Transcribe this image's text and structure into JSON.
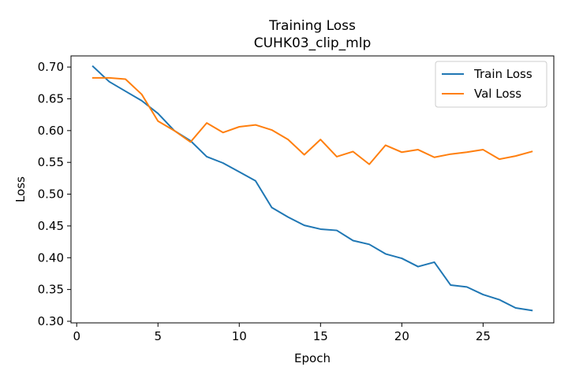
{
  "chart_data": {
    "type": "line",
    "title": "Training Loss",
    "subtitle": "CUHK03_clip_mlp",
    "xlabel": "Epoch",
    "ylabel": "Loss",
    "xlim": [
      -0.35,
      29.35
    ],
    "ylim": [
      0.2975,
      0.7175
    ],
    "x_ticks": [
      0,
      5,
      10,
      15,
      20,
      25
    ],
    "x_tick_labels": [
      "0",
      "5",
      "10",
      "15",
      "20",
      "25"
    ],
    "y_ticks": [
      0.3,
      0.35,
      0.4,
      0.45,
      0.5,
      0.55,
      0.6,
      0.65,
      0.7
    ],
    "y_tick_labels": [
      "0.30",
      "0.35",
      "0.40",
      "0.45",
      "0.50",
      "0.55",
      "0.60",
      "0.65",
      "0.70"
    ],
    "grid": false,
    "legend_position": "top-right",
    "x": [
      1,
      2,
      3,
      4,
      5,
      6,
      7,
      8,
      9,
      10,
      11,
      12,
      13,
      14,
      15,
      16,
      17,
      18,
      19,
      20,
      21,
      22,
      23,
      24,
      25,
      26,
      27,
      28
    ],
    "series": [
      {
        "name": "Train Loss",
        "color": "#1f77b4",
        "values": [
          0.701,
          0.677,
          0.662,
          0.647,
          0.627,
          0.6,
          0.584,
          0.559,
          0.549,
          0.535,
          0.521,
          0.479,
          0.464,
          0.451,
          0.445,
          0.443,
          0.427,
          0.421,
          0.406,
          0.399,
          0.386,
          0.393,
          0.357,
          0.354,
          0.342,
          0.334,
          0.321,
          0.317
        ]
      },
      {
        "name": "Val Loss",
        "color": "#ff7f0e",
        "values": [
          0.683,
          0.683,
          0.681,
          0.657,
          0.615,
          0.6,
          0.582,
          0.612,
          0.597,
          0.606,
          0.609,
          0.601,
          0.586,
          0.562,
          0.586,
          0.559,
          0.567,
          0.547,
          0.577,
          0.566,
          0.57,
          0.558,
          0.563,
          0.566,
          0.57,
          0.555,
          0.56,
          0.567
        ]
      }
    ]
  }
}
